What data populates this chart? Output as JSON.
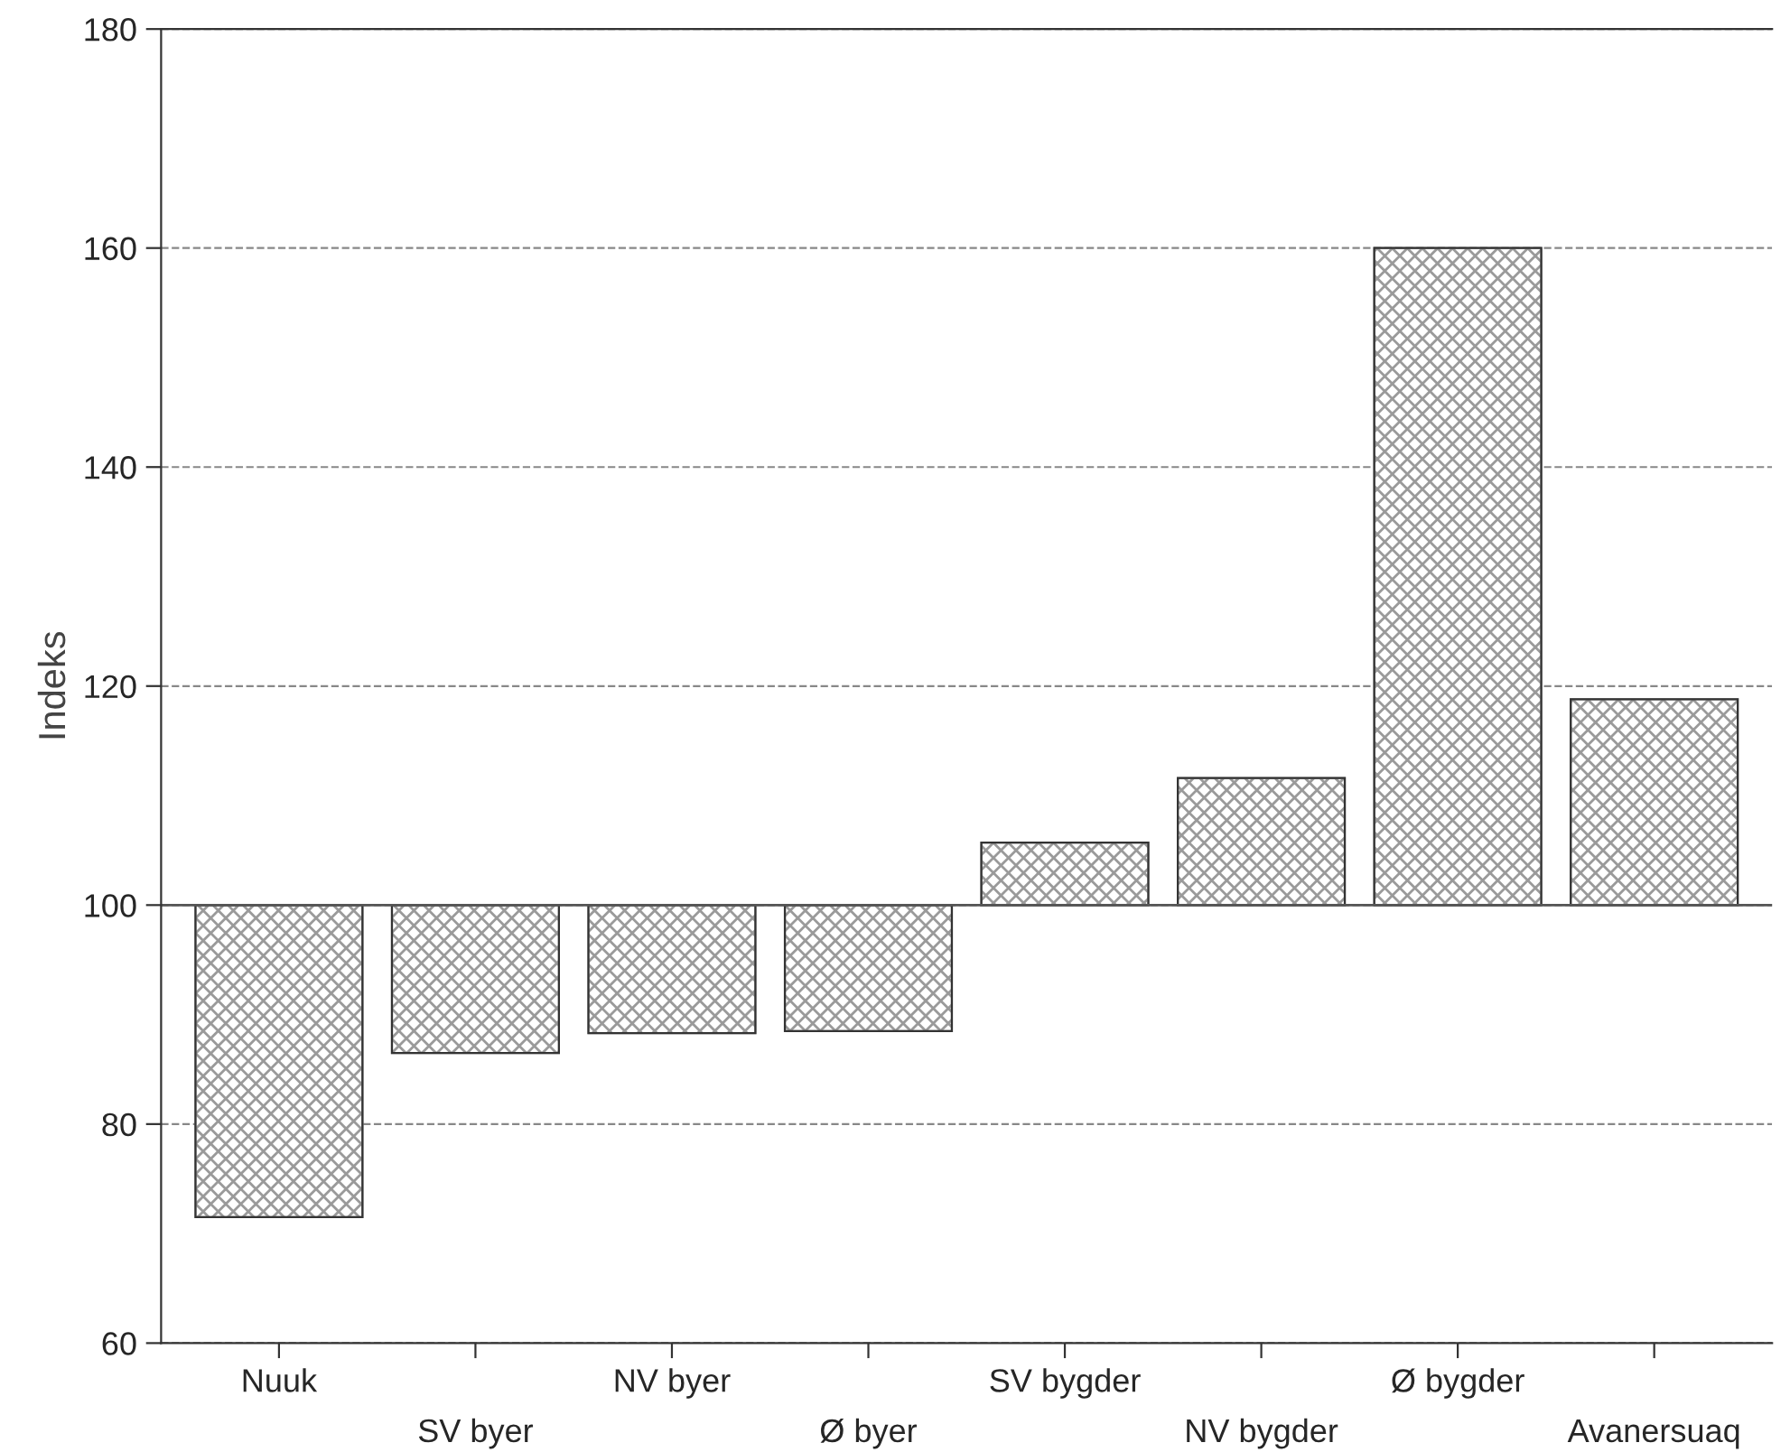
{
  "chart_data": {
    "type": "bar",
    "ylabel": "Indeks",
    "categories": [
      "Nuuk",
      "SV byer",
      "NV byer",
      "Ø byer",
      "SV bygder",
      "NV bygder",
      "Ø bygder",
      "Avanersuaq"
    ],
    "base": [
      100,
      100,
      100,
      100,
      100,
      100,
      100,
      100
    ],
    "values": [
      -28.5,
      -13.5,
      -11.7,
      -11.5,
      5.7,
      11.6,
      60,
      18.8
    ],
    "color": "#9a9a9a",
    "ylim": [
      60,
      180
    ],
    "yticks": [
      60,
      80,
      100,
      120,
      140,
      160,
      180
    ],
    "grid": "y",
    "ref_lines": [
      {
        "axis": "y",
        "value": 100,
        "color": "#555555",
        "line_style": "solid"
      }
    ]
  }
}
